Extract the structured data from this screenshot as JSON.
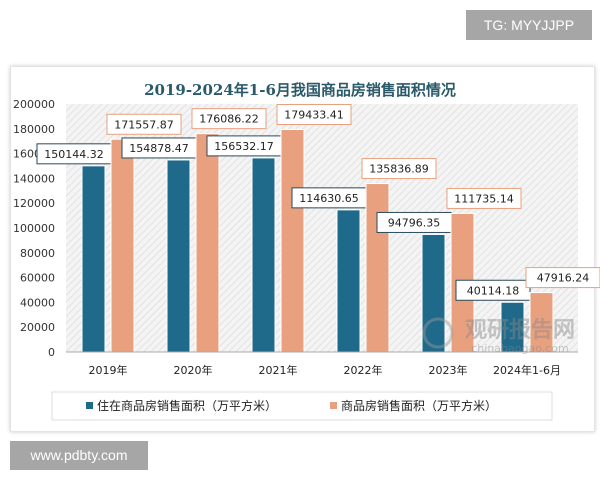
{
  "watermarks": {
    "top": "TG: MYYJJPP",
    "bottom": "www.pdbty.com",
    "logo": "观研报告网 chinabaogao.com"
  },
  "chart_data": {
    "type": "bar",
    "title": "2019-2024年1-6月我国商品房销售面积情况",
    "categories": [
      "2019年",
      "2020年",
      "2021年",
      "2022年",
      "2023年",
      "2024年1-6月"
    ],
    "series": [
      {
        "name": "住在商品房销售面积（万平方米）",
        "color": "#1f6a8a",
        "values": [
          150144.32,
          154878.47,
          156532.17,
          114630.65,
          94796.35,
          40114.18
        ]
      },
      {
        "name": "商品房销售面积（万平方米）",
        "color": "#e9a07f",
        "values": [
          171557.87,
          176086.22,
          179433.41,
          135836.89,
          111735.14,
          47916.24
        ]
      }
    ],
    "ylim": [
      0,
      200000
    ],
    "yticks": [
      "0",
      "20000",
      "40000",
      "60000",
      "80000",
      "100000",
      "120000",
      "140000",
      "160000",
      "180000",
      "200000"
    ],
    "legend": "bottom",
    "grid": false
  }
}
